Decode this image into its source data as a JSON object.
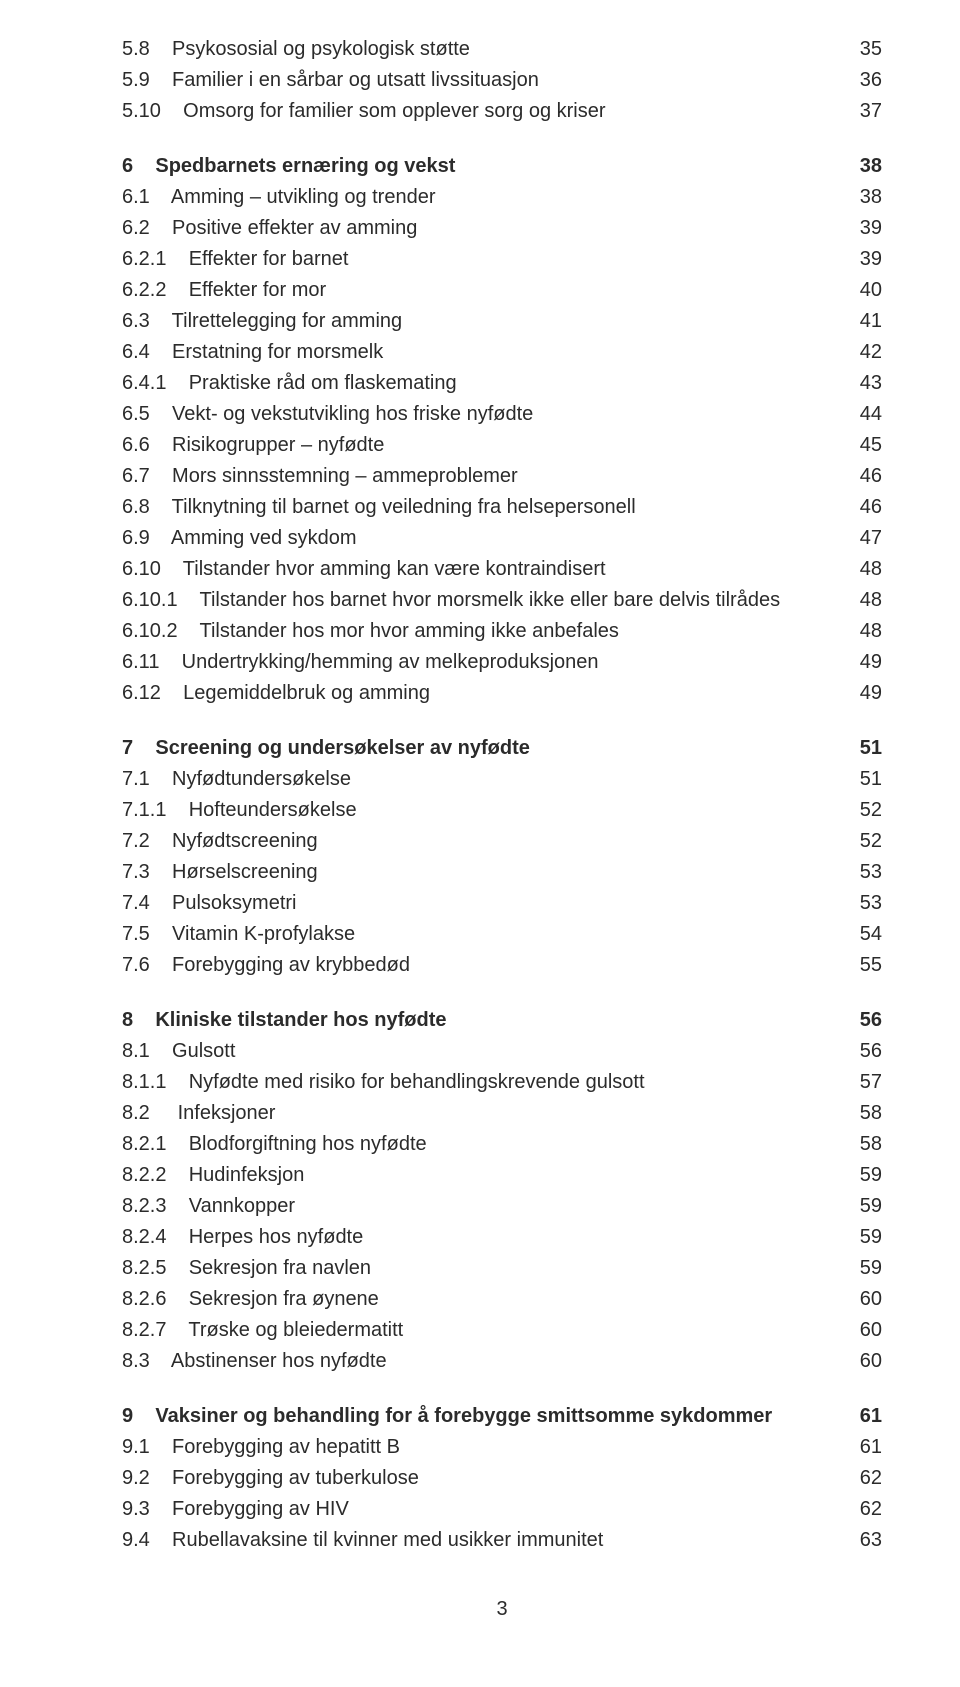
{
  "page_number": "3",
  "toc": [
    {
      "num": "5.8",
      "title": "Psykososial og psykologisk støtte",
      "page": "35",
      "indent": 0,
      "bold": false
    },
    {
      "num": "5.9",
      "title": "Familier i en sårbar og utsatt livssituasjon",
      "page": "36",
      "indent": 0,
      "bold": false
    },
    {
      "num": "5.10",
      "title": "Omsorg for familier som opplever sorg og kriser",
      "page": "37",
      "indent": 0,
      "bold": false
    },
    {
      "gap": true
    },
    {
      "num": "6",
      "title": "Spedbarnets ernæring og vekst",
      "page": "38",
      "indent": 0,
      "bold": true
    },
    {
      "num": "6.1",
      "title": "Amming – utvikling og trender",
      "page": "38",
      "indent": 0,
      "bold": false
    },
    {
      "num": "6.2",
      "title": "Positive effekter av amming",
      "page": "39",
      "indent": 0,
      "bold": false
    },
    {
      "num": "6.2.1",
      "title": "Effekter for barnet",
      "page": "39",
      "indent": 0,
      "bold": false
    },
    {
      "num": "6.2.2",
      "title": "Effekter for mor",
      "page": "40",
      "indent": 0,
      "bold": false
    },
    {
      "num": "6.3",
      "title": "Tilrettelegging for amming",
      "page": "41",
      "indent": 0,
      "bold": false
    },
    {
      "num": "6.4",
      "title": "Erstatning for morsmelk",
      "page": "42",
      "indent": 0,
      "bold": false
    },
    {
      "num": "6.4.1",
      "title": "Praktiske råd om flaskemating",
      "page": "43",
      "indent": 0,
      "bold": false
    },
    {
      "num": "6.5",
      "title": "Vekt- og vekstutvikling hos friske nyfødte",
      "page": "44",
      "indent": 0,
      "bold": false
    },
    {
      "num": "6.6",
      "title": "Risikogrupper – nyfødte",
      "page": "45",
      "indent": 0,
      "bold": false
    },
    {
      "num": "6.7",
      "title": "Mors sinnsstemning – ammeproblemer",
      "page": "46",
      "indent": 0,
      "bold": false
    },
    {
      "num": "6.8",
      "title": "Tilknytning til barnet og veiledning fra helsepersonell",
      "page": "46",
      "indent": 0,
      "bold": false
    },
    {
      "num": "6.9",
      "title": "Amming ved sykdom",
      "page": "47",
      "indent": 0,
      "bold": false
    },
    {
      "num": "6.10",
      "title": "Tilstander hvor amming kan være kontraindisert",
      "page": "48",
      "indent": 0,
      "bold": false
    },
    {
      "num": "6.10.1",
      "title": "Tilstander hos barnet hvor morsmelk ikke eller bare delvis tilrådes",
      "page": "48",
      "indent": 0,
      "bold": false
    },
    {
      "num": "6.10.2",
      "title": "Tilstander hos mor hvor amming ikke anbefales",
      "page": "48",
      "indent": 0,
      "bold": false
    },
    {
      "num": "6.11",
      "title": "Undertrykking/hemming av melkeproduksjonen",
      "page": "49",
      "indent": 0,
      "bold": false
    },
    {
      "num": "6.12",
      "title": "Legemiddelbruk og amming",
      "page": "49",
      "indent": 0,
      "bold": false
    },
    {
      "gap": true
    },
    {
      "num": "7",
      "title": "Screening og undersøkelser av nyfødte",
      "page": "51",
      "indent": 0,
      "bold": true
    },
    {
      "num": "7.1",
      "title": "Nyfødtundersøkelse",
      "page": "51",
      "indent": 0,
      "bold": false
    },
    {
      "num": "7.1.1",
      "title": "Hofteundersøkelse",
      "page": "52",
      "indent": 0,
      "bold": false
    },
    {
      "num": "7.2",
      "title": "Nyfødtscreening",
      "page": "52",
      "indent": 0,
      "bold": false
    },
    {
      "num": "7.3",
      "title": "Hørselscreening",
      "page": "53",
      "indent": 0,
      "bold": false
    },
    {
      "num": "7.4",
      "title": "Pulsoksymetri",
      "page": "53",
      "indent": 0,
      "bold": false
    },
    {
      "num": "7.5",
      "title": "Vitamin K-profylakse",
      "page": "54",
      "indent": 0,
      "bold": false
    },
    {
      "num": "7.6",
      "title": "Forebygging av krybbedød",
      "page": "55",
      "indent": 0,
      "bold": false
    },
    {
      "gap": true
    },
    {
      "num": "8",
      "title": "Kliniske tilstander hos nyfødte",
      "page": "56",
      "indent": 0,
      "bold": true
    },
    {
      "num": "8.1",
      "title": "Gulsott",
      "page": "56",
      "indent": 0,
      "bold": false
    },
    {
      "num": "8.1.1",
      "title": "Nyfødte med risiko for behandlingskrevende gulsott",
      "page": "57",
      "indent": 0,
      "bold": false
    },
    {
      "num": "8.2",
      "title": " Infeksjoner",
      "page": "58",
      "indent": 0,
      "bold": false
    },
    {
      "num": "8.2.1",
      "title": "Blodforgiftning hos nyfødte",
      "page": "58",
      "indent": 0,
      "bold": false
    },
    {
      "num": "8.2.2",
      "title": "Hudinfeksjon",
      "page": "59",
      "indent": 0,
      "bold": false
    },
    {
      "num": "8.2.3",
      "title": "Vannkopper",
      "page": "59",
      "indent": 0,
      "bold": false
    },
    {
      "num": "8.2.4",
      "title": "Herpes hos nyfødte",
      "page": "59",
      "indent": 0,
      "bold": false
    },
    {
      "num": "8.2.5",
      "title": "Sekresjon fra navlen",
      "page": "59",
      "indent": 0,
      "bold": false
    },
    {
      "num": "8.2.6",
      "title": "Sekresjon fra øynene",
      "page": "60",
      "indent": 0,
      "bold": false
    },
    {
      "num": "8.2.7",
      "title": "Trøske og bleiedermatitt",
      "page": "60",
      "indent": 0,
      "bold": false
    },
    {
      "num": "8.3",
      "title": "Abstinenser hos nyfødte",
      "page": "60",
      "indent": 0,
      "bold": false
    },
    {
      "gap": true
    },
    {
      "num": "9",
      "title": "Vaksiner og behandling for å forebygge smittsomme sykdommer",
      "page": "61",
      "indent": 0,
      "bold": true
    },
    {
      "num": "9.1",
      "title": "Forebygging av hepatitt B",
      "page": "61",
      "indent": 0,
      "bold": false
    },
    {
      "num": "9.2",
      "title": "Forebygging av tuberkulose",
      "page": "62",
      "indent": 0,
      "bold": false
    },
    {
      "num": "9.3",
      "title": "Forebygging av HIV",
      "page": "62",
      "indent": 0,
      "bold": false
    },
    {
      "num": "9.4",
      "title": "Rubellavaksine til kvinner med usikker immunitet",
      "page": "63",
      "indent": 0,
      "bold": false
    }
  ]
}
